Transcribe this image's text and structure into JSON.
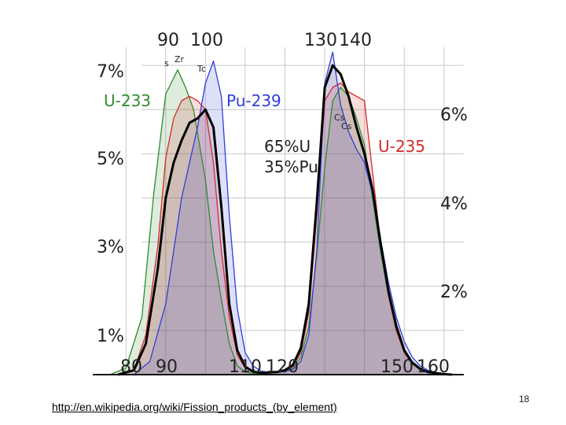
{
  "chart_data": {
    "type": "area",
    "title": "",
    "xlabel": "",
    "ylabel": "",
    "x_tick_labels": {
      "top": [
        "90",
        "100",
        "130",
        "140"
      ],
      "bottom": [
        "80",
        "90",
        "110",
        "120",
        "150",
        "160"
      ]
    },
    "y_tick_labels": {
      "left": [
        "7%",
        "5%",
        "3%",
        "1%"
      ],
      "right": [
        "6%",
        "4%",
        "2%"
      ]
    },
    "annotations": {
      "mix_line1": "65%U",
      "mix_line2": "35%Pu",
      "el_sr": "s",
      "el_zr": "Zr",
      "el_tc": "Tc",
      "el_cs1": "Cs",
      "el_cs2": "Cs"
    },
    "series": [
      {
        "name": "U-233",
        "color": "#2e8b2e",
        "x": [
          76,
          80,
          84,
          87,
          90,
          93,
          95,
          97,
          100,
          102,
          104,
          106,
          108,
          110,
          112,
          114,
          116,
          118,
          120,
          122,
          124,
          126,
          128,
          130,
          132,
          134,
          136,
          138,
          140,
          142,
          144,
          146,
          148,
          150,
          152,
          154,
          156,
          158,
          160,
          162
        ],
        "values": [
          0.0,
          0.15,
          1.3,
          4.1,
          6.35,
          6.9,
          6.5,
          6.0,
          4.4,
          2.8,
          1.7,
          0.7,
          0.2,
          0.06,
          0.03,
          0.03,
          0.04,
          0.05,
          0.08,
          0.14,
          0.4,
          1.1,
          2.7,
          4.7,
          6.2,
          6.5,
          6.3,
          5.8,
          5.2,
          4.0,
          2.8,
          1.8,
          1.0,
          0.55,
          0.3,
          0.15,
          0.06,
          0.03,
          0.01,
          0.0
        ]
      },
      {
        "name": "U-235",
        "color": "#d42a2a",
        "x": [
          78,
          82,
          85,
          88,
          90,
          92,
          94,
          96,
          98,
          100,
          102,
          104,
          106,
          108,
          110,
          112,
          114,
          116,
          118,
          120,
          122,
          124,
          126,
          128,
          130,
          132,
          134,
          136,
          138,
          140,
          142,
          144,
          146,
          148,
          150,
          152,
          154,
          156,
          158,
          160,
          162
        ],
        "values": [
          0.0,
          0.1,
          0.9,
          2.9,
          4.9,
          5.8,
          6.2,
          6.3,
          6.2,
          6.0,
          4.8,
          2.8,
          1.3,
          0.45,
          0.15,
          0.06,
          0.04,
          0.04,
          0.05,
          0.08,
          0.18,
          0.5,
          1.4,
          3.6,
          6.2,
          6.5,
          6.6,
          6.4,
          6.3,
          6.2,
          4.6,
          3.0,
          1.8,
          1.0,
          0.5,
          0.25,
          0.12,
          0.06,
          0.03,
          0.01,
          0.0
        ]
      },
      {
        "name": "Pu-239",
        "color": "#2f3fd6",
        "x": [
          82,
          86,
          90,
          94,
          96,
          98,
          100,
          102,
          104,
          106,
          108,
          110,
          112,
          114,
          116,
          118,
          120,
          122,
          124,
          126,
          128,
          130,
          132,
          134,
          136,
          138,
          140,
          142,
          144,
          146,
          148,
          150,
          152,
          154,
          156,
          158,
          160,
          162,
          164
        ],
        "values": [
          0.0,
          0.3,
          1.6,
          4.0,
          4.8,
          5.6,
          6.6,
          7.1,
          6.3,
          3.6,
          1.5,
          0.5,
          0.2,
          0.08,
          0.05,
          0.05,
          0.07,
          0.12,
          0.3,
          0.9,
          2.8,
          6.6,
          7.3,
          6.1,
          5.5,
          5.1,
          4.8,
          4.1,
          3.1,
          2.1,
          1.3,
          0.75,
          0.4,
          0.2,
          0.1,
          0.05,
          0.02,
          0.01,
          0.0
        ]
      },
      {
        "name": "65%U 35%Pu",
        "color": "#000000",
        "x": [
          78,
          82,
          85,
          88,
          90,
          92,
          94,
          96,
          98,
          100,
          102,
          104,
          106,
          108,
          110,
          112,
          114,
          116,
          118,
          120,
          122,
          124,
          126,
          128,
          130,
          132,
          134,
          136,
          138,
          140,
          142,
          144,
          146,
          148,
          150,
          152,
          154,
          156,
          158,
          160,
          162
        ],
        "values": [
          0.0,
          0.1,
          0.7,
          2.4,
          4.0,
          4.8,
          5.3,
          5.7,
          5.8,
          6.0,
          5.6,
          3.8,
          1.6,
          0.55,
          0.18,
          0.07,
          0.04,
          0.05,
          0.06,
          0.1,
          0.22,
          0.6,
          1.6,
          3.9,
          6.5,
          7.0,
          6.8,
          6.3,
          5.6,
          5.0,
          4.2,
          3.0,
          1.9,
          1.1,
          0.55,
          0.27,
          0.13,
          0.06,
          0.03,
          0.01,
          0.0
        ]
      }
    ]
  },
  "footer": {
    "source_link": "http://en.wikipedia.org/wiki/Fission_products_(by_element)",
    "slide_number": "18"
  }
}
